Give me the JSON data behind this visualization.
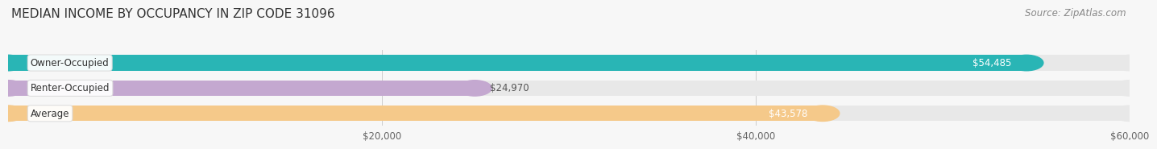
{
  "title": "MEDIAN INCOME BY OCCUPANCY IN ZIP CODE 31096",
  "source": "Source: ZipAtlas.com",
  "categories": [
    "Owner-Occupied",
    "Renter-Occupied",
    "Average"
  ],
  "values": [
    54485,
    24970,
    43578
  ],
  "bar_colors": [
    "#29b5b5",
    "#c4a8d0",
    "#f5c98a"
  ],
  "value_labels": [
    "$54,485",
    "$24,970",
    "$43,578"
  ],
  "xlim": [
    0,
    60000
  ],
  "xticks": [
    20000,
    40000,
    60000
  ],
  "xticklabels": [
    "$20,000",
    "$40,000",
    "$60,000"
  ],
  "background_color": "#f7f7f7",
  "bar_background_color": "#e8e8e8",
  "title_fontsize": 11,
  "source_fontsize": 8.5,
  "label_fontsize": 8.5,
  "tick_fontsize": 8.5,
  "bar_height": 0.62
}
